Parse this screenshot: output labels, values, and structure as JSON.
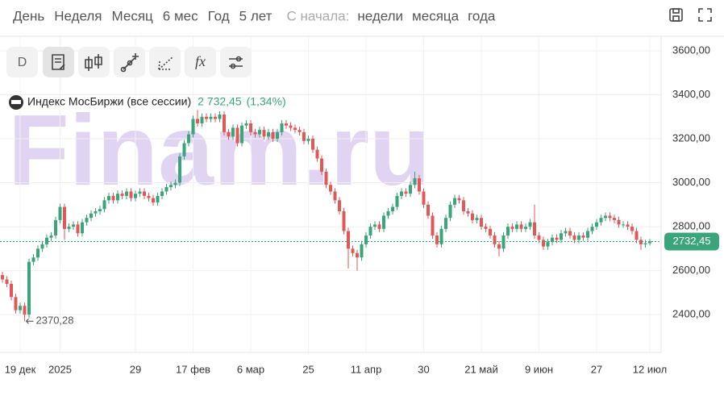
{
  "toolbar": {
    "periods": [
      "День",
      "Неделя",
      "Месяц",
      "6 мес",
      "Год",
      "5 лет"
    ],
    "since_label": "С начала:",
    "since": [
      "недели",
      "месяца",
      "года"
    ],
    "tools": [
      "D",
      "fx"
    ]
  },
  "chart_data": {
    "type": "candlestick",
    "title": "Индекс МосБиржи (все сессии)",
    "legend_price": "2 732,45",
    "legend_change": "(1,34%)",
    "watermark": "Finam.ru",
    "up_color": "#3aa57a",
    "down_color": "#e25757",
    "categories": [
      null,
      null,
      null,
      null,
      "19 дек",
      null,
      null,
      null,
      null,
      null,
      null,
      null,
      null,
      "2025",
      null,
      null,
      null,
      null,
      null,
      null,
      null,
      null,
      null,
      null,
      null,
      null,
      null,
      null,
      null,
      null,
      "29",
      null,
      null,
      null,
      null,
      null,
      null,
      null,
      null,
      null,
      null,
      null,
      null,
      "17 фев",
      null,
      null,
      null,
      null,
      null,
      null,
      null,
      null,
      null,
      null,
      null,
      null,
      "6 мар",
      null,
      null,
      null,
      null,
      null,
      null,
      null,
      null,
      null,
      null,
      null,
      null,
      "25",
      null,
      null,
      null,
      null,
      null,
      null,
      null,
      null,
      null,
      null,
      null,
      null,
      "11 апр",
      null,
      null,
      null,
      null,
      null,
      null,
      null,
      null,
      null,
      null,
      null,
      null,
      "30",
      null,
      null,
      null,
      null,
      null,
      null,
      null,
      null,
      null,
      null,
      null,
      null,
      "21 май",
      null,
      null,
      null,
      null,
      null,
      null,
      null,
      null,
      null,
      null,
      null,
      null,
      "9 июн",
      null,
      null,
      null,
      null,
      null,
      null,
      null,
      null,
      null,
      null,
      null,
      null,
      "27",
      null,
      null,
      null,
      null,
      null,
      null,
      null,
      null,
      null,
      null,
      null,
      "12 июл"
    ],
    "open": [
      2580,
      2560,
      2540,
      2480,
      2420,
      2440,
      2400,
      2640,
      2660,
      2700,
      2720,
      2750,
      2760,
      2830,
      2890,
      2790,
      2800,
      2810,
      2770,
      2820,
      2840,
      2860,
      2870,
      2880,
      2920,
      2940,
      2920,
      2950,
      2940,
      2960,
      2930,
      2950,
      2960,
      2940,
      2930,
      2910,
      2940,
      2960,
      2980,
      2990,
      3000,
      3120,
      3180,
      3220,
      3290,
      3270,
      3300,
      3290,
      3300,
      3290,
      3310,
      3230,
      3210,
      3250,
      3180,
      3260,
      3270,
      3230,
      3220,
      3240,
      3210,
      3230,
      3200,
      3230,
      3270,
      3260,
      3250,
      3240,
      3230,
      3190,
      3200,
      3150,
      3110,
      3050,
      2990,
      2960,
      2920,
      2870,
      2780,
      2700,
      2680,
      2660,
      2720,
      2760,
      2800,
      2810,
      2790,
      2850,
      2870,
      2890,
      2940,
      2960,
      2950,
      2990,
      3020,
      2960,
      2900,
      2850,
      2760,
      2720,
      2790,
      2840,
      2900,
      2930,
      2920,
      2870,
      2860,
      2830,
      2840,
      2800,
      2790,
      2760,
      2720,
      2700,
      2760,
      2800,
      2790,
      2810,
      2790,
      2800,
      2820,
      2760,
      2740,
      2710,
      2730,
      2750,
      2740,
      2770,
      2780,
      2760,
      2740,
      2760,
      2750,
      2780,
      2800,
      2820,
      2840,
      2850,
      2840,
      2830,
      2810,
      2810,
      2800,
      2780,
      2740,
      2720,
      2725
    ],
    "high": [
      2595,
      2575,
      2555,
      2495,
      2455,
      2455,
      2655,
      2675,
      2715,
      2735,
      2765,
      2775,
      2845,
      2905,
      2905,
      2815,
      2825,
      2825,
      2835,
      2855,
      2875,
      2885,
      2895,
      2935,
      2955,
      2955,
      2965,
      2965,
      2975,
      2975,
      2965,
      2975,
      2975,
      2955,
      2945,
      2955,
      2975,
      2995,
      3005,
      3015,
      3135,
      3195,
      3235,
      3305,
      3330,
      3315,
      3315,
      3315,
      3315,
      3325,
      3325,
      3245,
      3265,
      3265,
      3275,
      3285,
      3285,
      3245,
      3255,
      3255,
      3245,
      3245,
      3245,
      3285,
      3285,
      3275,
      3265,
      3255,
      3245,
      3215,
      3215,
      3165,
      3125,
      3065,
      3005,
      2975,
      2935,
      2885,
      2795,
      2715,
      2695,
      2735,
      2775,
      2815,
      2825,
      2825,
      2865,
      2885,
      2905,
      2955,
      2975,
      2975,
      3005,
      3050,
      3035,
      2975,
      2915,
      2865,
      2775,
      2805,
      2855,
      2915,
      2945,
      2945,
      2935,
      2885,
      2875,
      2855,
      2855,
      2815,
      2805,
      2775,
      2735,
      2775,
      2815,
      2815,
      2825,
      2825,
      2815,
      2835,
      2900,
      2775,
      2755,
      2745,
      2765,
      2765,
      2785,
      2795,
      2795,
      2775,
      2775,
      2775,
      2795,
      2815,
      2835,
      2855,
      2865,
      2865,
      2855,
      2845,
      2825,
      2825,
      2815,
      2795,
      2755,
      2740,
      2745
    ],
    "low": [
      2545,
      2525,
      2465,
      2405,
      2405,
      2370.28,
      2385,
      2625,
      2645,
      2685,
      2705,
      2735,
      2745,
      2815,
      2740,
      2775,
      2785,
      2755,
      2755,
      2805,
      2825,
      2845,
      2855,
      2865,
      2905,
      2905,
      2905,
      2925,
      2925,
      2915,
      2915,
      2935,
      2925,
      2915,
      2895,
      2895,
      2925,
      2945,
      2965,
      2975,
      2985,
      3105,
      3165,
      3205,
      3255,
      3255,
      3275,
      3275,
      3275,
      3275,
      3215,
      3195,
      3195,
      3165,
      3165,
      3245,
      3215,
      3205,
      3205,
      3195,
      3195,
      3185,
      3185,
      3215,
      3245,
      3235,
      3225,
      3215,
      3175,
      3175,
      3135,
      3095,
      3035,
      2975,
      2945,
      2905,
      2855,
      2765,
      2610,
      2665,
      2600,
      2645,
      2705,
      2745,
      2785,
      2775,
      2775,
      2835,
      2855,
      2875,
      2925,
      2935,
      2935,
      2975,
      2945,
      2885,
      2835,
      2745,
      2705,
      2705,
      2775,
      2825,
      2885,
      2905,
      2855,
      2845,
      2815,
      2815,
      2785,
      2775,
      2745,
      2705,
      2665,
      2685,
      2745,
      2775,
      2775,
      2775,
      2775,
      2785,
      2745,
      2725,
      2695,
      2695,
      2715,
      2725,
      2725,
      2755,
      2745,
      2725,
      2725,
      2735,
      2735,
      2765,
      2785,
      2805,
      2825,
      2825,
      2815,
      2795,
      2795,
      2785,
      2765,
      2725,
      2695,
      2705,
      2715
    ],
    "close": [
      2560,
      2540,
      2480,
      2420,
      2440,
      2400,
      2640,
      2660,
      2700,
      2720,
      2750,
      2760,
      2830,
      2890,
      2790,
      2800,
      2810,
      2770,
      2820,
      2840,
      2860,
      2870,
      2880,
      2920,
      2940,
      2920,
      2950,
      2940,
      2960,
      2930,
      2950,
      2960,
      2940,
      2930,
      2910,
      2940,
      2960,
      2980,
      2990,
      3000,
      3120,
      3180,
      3220,
      3290,
      3270,
      3300,
      3290,
      3300,
      3290,
      3310,
      3230,
      3210,
      3250,
      3180,
      3260,
      3270,
      3230,
      3220,
      3240,
      3210,
      3230,
      3200,
      3230,
      3270,
      3260,
      3250,
      3240,
      3230,
      3190,
      3200,
      3150,
      3110,
      3050,
      2990,
      2960,
      2920,
      2870,
      2780,
      2700,
      2680,
      2660,
      2720,
      2760,
      2800,
      2810,
      2790,
      2850,
      2870,
      2890,
      2940,
      2960,
      2950,
      2990,
      3020,
      2960,
      2900,
      2850,
      2760,
      2720,
      2790,
      2840,
      2900,
      2930,
      2920,
      2870,
      2860,
      2830,
      2840,
      2800,
      2790,
      2760,
      2720,
      2700,
      2760,
      2800,
      2790,
      2810,
      2790,
      2800,
      2820,
      2760,
      2740,
      2710,
      2730,
      2750,
      2740,
      2770,
      2780,
      2760,
      2740,
      2760,
      2750,
      2780,
      2800,
      2820,
      2840,
      2850,
      2840,
      2830,
      2810,
      2810,
      2800,
      2780,
      2740,
      2720,
      2725,
      2732.45
    ],
    "min_label": {
      "value": 2370.28,
      "label": "2370,28"
    },
    "price_line": {
      "value": 2732.45,
      "label": "2732,45",
      "color": "#3aa57a"
    },
    "ylim": [
      2228,
      3666
    ],
    "yticks": [
      {
        "value": 2400,
        "label": "2400,00"
      },
      {
        "value": 2600,
        "label": "2600,00"
      },
      {
        "value": 2800,
        "label": "2800,00"
      },
      {
        "value": 3000,
        "label": "3000,00"
      },
      {
        "value": 3200,
        "label": "3200,00"
      },
      {
        "value": 3400,
        "label": "3400,00"
      },
      {
        "value": 3600,
        "label": "3600,00"
      }
    ],
    "grid": true
  }
}
